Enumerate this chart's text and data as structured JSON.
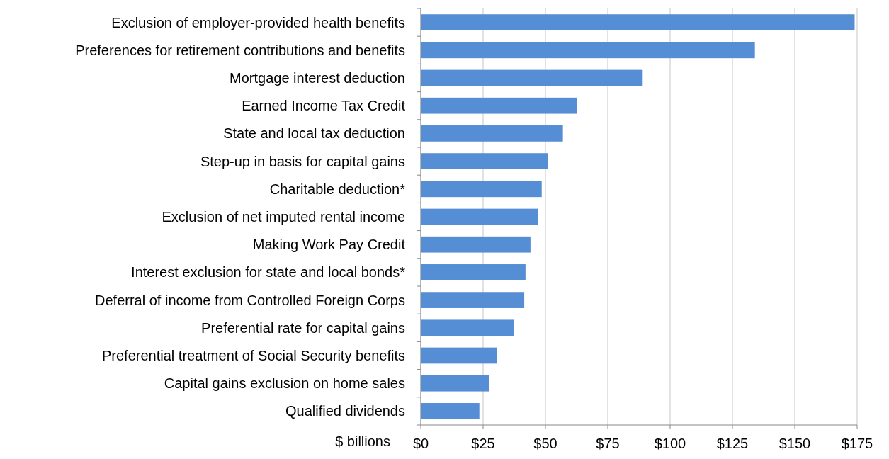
{
  "chart_data": {
    "type": "bar",
    "orientation": "horizontal",
    "xlabel": "$ billions",
    "categories": [
      "Exclusion of employer-provided health benefits",
      "Preferences for retirement contributions and benefits",
      "Mortgage interest deduction",
      "Earned Income Tax Credit",
      "State and local tax deduction",
      "Step-up in basis for capital gains",
      "Charitable deduction*",
      "Exclusion of net imputed rental income",
      "Making Work Pay Credit",
      "Interest exclusion for state and local bonds*",
      "Deferral of income from Controlled Foreign Corps",
      "Preferential rate for capital gains",
      "Preferential treatment of Social Security benefits",
      "Capital gains exclusion on home sales",
      "Qualified dividends"
    ],
    "values": [
      174,
      134,
      89,
      62.5,
      57,
      51,
      48.5,
      47,
      44,
      42,
      41.5,
      37.5,
      30.5,
      27.5,
      23.5
    ],
    "color": "#558ed5",
    "xlim": [
      0,
      175
    ],
    "xticks": [
      {
        "value": 0,
        "label": "$0"
      },
      {
        "value": 25,
        "label": "$25"
      },
      {
        "value": 50,
        "label": "$50"
      },
      {
        "value": 75,
        "label": "$75"
      },
      {
        "value": 100,
        "label": "$100"
      },
      {
        "value": 125,
        "label": "$125"
      },
      {
        "value": 150,
        "label": "$150"
      },
      {
        "value": 175,
        "label": "$175"
      }
    ],
    "grid": "x"
  }
}
